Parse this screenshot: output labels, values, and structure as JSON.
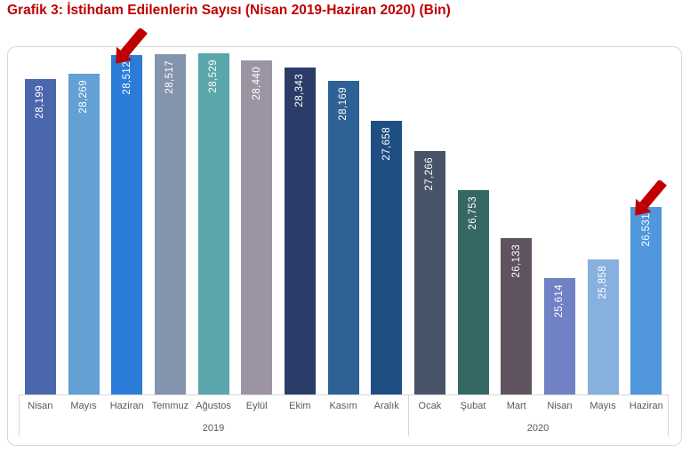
{
  "page_title": "Grafik 3: İstihdam Edilenlerin Sayısı (Nisan 2019-Haziran 2020) (Bin)",
  "colors": {
    "title_text": "#C00000",
    "annotation_arrow": "#C00000",
    "frame_border": "#D8D8D8",
    "axis_line": "#D8D8D8",
    "axis_text": "#595959",
    "bar_value_text": "#FFFFFF"
  },
  "chart_data": {
    "type": "bar",
    "title": "Grafik 3: İstihdam Edilenlerin Sayısı (Nisan 2019-Haziran 2020) (Bin)",
    "xlabel": "",
    "ylabel": "",
    "categories": [
      "Nisan",
      "Mayıs",
      "Haziran",
      "Temmuz",
      "Ağustos",
      "Eylül",
      "Ekim",
      "Kasım",
      "Aralık",
      "Ocak",
      "Şubat",
      "Mart",
      "Nisan",
      "Mayıs",
      "Haziran"
    ],
    "category_groups": [
      {
        "label": "2019",
        "count": 9
      },
      {
        "label": "2020",
        "count": 6
      }
    ],
    "values": [
      28199,
      28269,
      28512,
      28517,
      28529,
      28440,
      28343,
      28169,
      27658,
      27266,
      26753,
      26133,
      25614,
      25858,
      26531
    ],
    "value_labels": [
      "28,199",
      "28,269",
      "28,512",
      "28,517",
      "28,529",
      "28,440",
      "28,343",
      "28,169",
      "27,658",
      "27,266",
      "26,753",
      "26,133",
      "25,614",
      "25,858",
      "26,531"
    ],
    "bar_colors": [
      "#4A66AC",
      "#63A0D3",
      "#2B7CD9",
      "#8494AC",
      "#59A6AB",
      "#9C93A3",
      "#2C3C69",
      "#2E6195",
      "#1E4E82",
      "#475467",
      "#356763",
      "#5F5360",
      "#7081C5",
      "#86B1DF",
      "#5097DC"
    ],
    "ylim": [
      24100,
      28610
    ],
    "gridlines": false,
    "legend": false,
    "value_labels_rotated": true,
    "annotations": [
      {
        "type": "arrow",
        "points_to": "Haziran 2019",
        "target_index": 2
      },
      {
        "type": "arrow",
        "points_to": "Haziran 2020",
        "target_index": 14
      }
    ]
  }
}
